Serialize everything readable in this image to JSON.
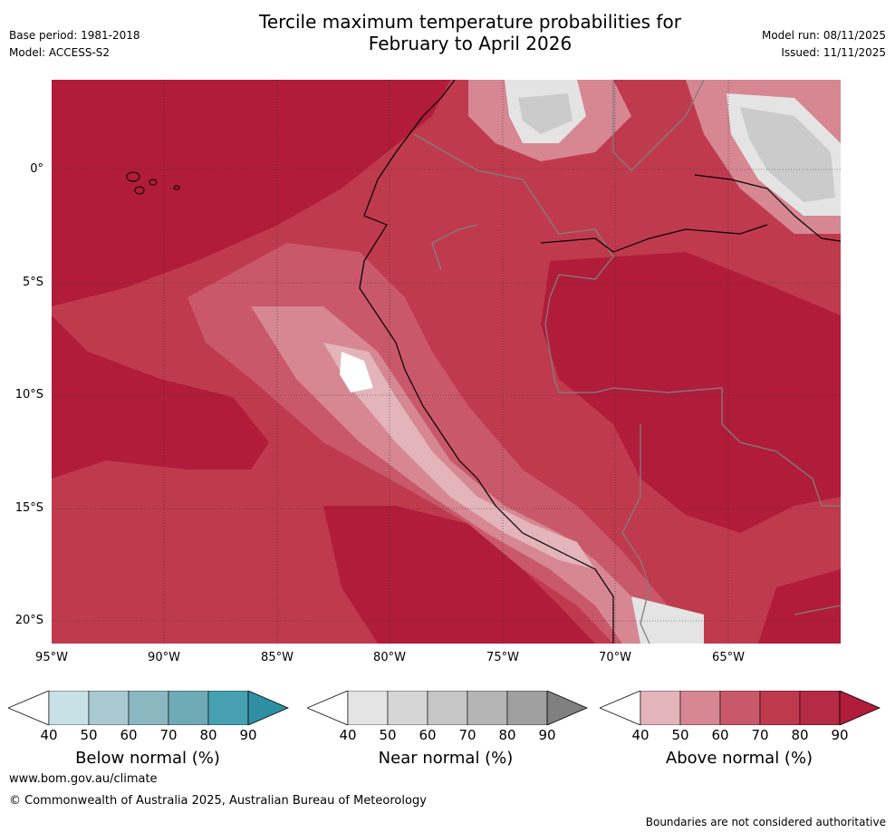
{
  "header": {
    "title_line1": "Tercile maximum temperature probabilities for",
    "title_line2": "February to April 2026",
    "base_period": "Base period: 1981-2018",
    "model": "Model: ACCESS-S2",
    "model_run": "Model run: 08/11/2025",
    "issued": "Issued: 11/11/2025"
  },
  "map": {
    "lat_labels": [
      "0°",
      "5°S",
      "10°S",
      "15°S",
      "20°S"
    ],
    "lon_labels": [
      "95°W",
      "90°W",
      "85°W",
      "80°W",
      "75°W",
      "70°W",
      "65°W"
    ],
    "colors": {
      "above_90": "#b01c39",
      "above_80": "#c03a4e",
      "above_70": "#c9586a",
      "above_60": "#d68792",
      "above_50": "#e3b4ba",
      "near_50": "#e4e4e4",
      "near_60": "#cbcbcb",
      "near_70": "#b5b5b5",
      "coast": "#000000",
      "boundary": "#7f7f7f"
    }
  },
  "legend": {
    "below": {
      "label": "Below normal (%)",
      "ticks": [
        "40",
        "50",
        "60",
        "70",
        "80",
        "90"
      ],
      "colors": [
        "#ffffff",
        "#c8e1e6",
        "#a8c9cf",
        "#8bb7c1",
        "#6eaab6",
        "#47a0b2",
        "#2e8fa3"
      ]
    },
    "near": {
      "label": "Near normal (%)",
      "ticks": [
        "40",
        "50",
        "60",
        "70",
        "80",
        "90"
      ],
      "colors": [
        "#ffffff",
        "#e4e4e4",
        "#d6d6d6",
        "#c6c6c6",
        "#b5b5b5",
        "#a0a0a0",
        "#808080"
      ]
    },
    "above": {
      "label": "Above normal (%)",
      "ticks": [
        "40",
        "50",
        "60",
        "70",
        "80",
        "90"
      ],
      "colors": [
        "#ffffff",
        "#e3b4ba",
        "#d68792",
        "#c9586a",
        "#c03a4e",
        "#b52a45",
        "#b01c39"
      ]
    }
  },
  "footer": {
    "url": "www.bom.gov.au/climate",
    "copyright": "© Commonwealth of Australia 2025, Australian Bureau of Meteorology",
    "note": "Boundaries are not considered authoritative"
  }
}
